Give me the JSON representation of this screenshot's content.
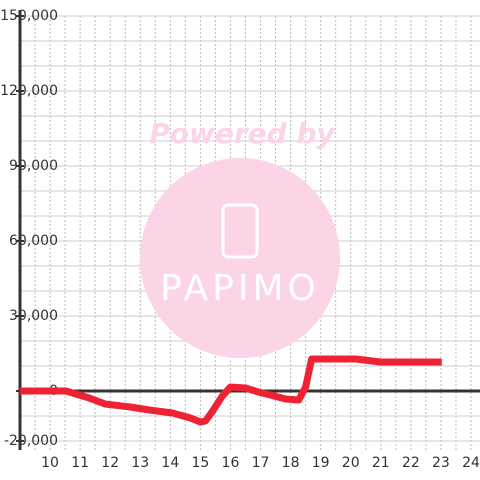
{
  "chart_data": {
    "type": "line",
    "watermark": {
      "line1": "Powered by",
      "line2": "PAPIMO"
    },
    "x": [
      9,
      10.53,
      11.3,
      11.83,
      12.67,
      13.3,
      14.07,
      14.67,
      15,
      15.17,
      15.43,
      15.73,
      16,
      16.5,
      16.93,
      17.33,
      17.83,
      18.27,
      18.5,
      18.7,
      20.17,
      21,
      23.03
    ],
    "series": [
      {
        "color": "#ee2233",
        "values": [
          0,
          0,
          -2800,
          -5200,
          -6400,
          -7600,
          -8800,
          -10800,
          -12400,
          -12000,
          -7600,
          -2000,
          1600,
          1200,
          -400,
          -1600,
          -3200,
          -3600,
          1600,
          12800,
          12800,
          11600,
          11600
        ]
      }
    ],
    "xlim": [
      9,
      24.3
    ],
    "xticks": [
      10,
      11,
      12,
      13,
      14,
      15,
      16,
      17,
      18,
      19,
      20,
      21,
      22,
      23,
      24
    ],
    "xgrid": [
      9.5,
      10,
      10.5,
      11,
      11.5,
      12,
      12.5,
      13,
      13.5,
      14,
      14.5,
      15,
      15.5,
      16,
      16.5,
      17,
      17.5,
      18,
      18.5,
      19,
      19.5,
      20,
      20.5,
      21,
      21.5,
      22,
      22.5,
      23,
      23.5,
      24
    ],
    "ylim": [
      -20000,
      150000
    ],
    "yticks": [
      {
        "value": 150000,
        "label": "150,000"
      },
      {
        "value": 120000,
        "label": "120,000"
      },
      {
        "value": 90000,
        "label": "90,000"
      },
      {
        "value": 60000,
        "label": "60,000"
      },
      {
        "value": 30000,
        "label": "30,000"
      },
      0,
      {
        "value": -20000,
        "label": "-20,000"
      }
    ],
    "ygrid": [
      150000,
      140000,
      130000,
      120000,
      110000,
      100000,
      90000,
      80000,
      70000,
      60000,
      50000,
      40000,
      30000,
      20000,
      10000,
      -10000,
      -20000
    ],
    "grid": true
  }
}
